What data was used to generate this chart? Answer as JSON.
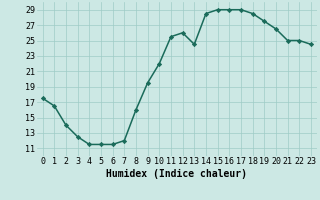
{
  "x": [
    0,
    1,
    2,
    3,
    4,
    5,
    6,
    7,
    8,
    9,
    10,
    11,
    12,
    13,
    14,
    15,
    16,
    17,
    18,
    19,
    20,
    21,
    22,
    23
  ],
  "y": [
    17.5,
    16.5,
    14.0,
    12.5,
    11.5,
    11.5,
    11.5,
    12.0,
    16.0,
    19.5,
    22.0,
    25.5,
    26.0,
    24.5,
    28.5,
    29.0,
    29.0,
    29.0,
    28.5,
    27.5,
    26.5,
    25.0,
    25.0,
    24.5
  ],
  "line_color": "#1a6b5a",
  "marker": "D",
  "marker_size": 2.2,
  "bg_color": "#cce8e4",
  "grid_color": "#9fccc6",
  "xlabel": "Humidex (Indice chaleur)",
  "xlabel_fontsize": 7,
  "xlim": [
    -0.5,
    23.5
  ],
  "ylim": [
    10,
    30
  ],
  "yticks": [
    11,
    13,
    15,
    17,
    19,
    21,
    23,
    25,
    27,
    29
  ],
  "xticks": [
    0,
    1,
    2,
    3,
    4,
    5,
    6,
    7,
    8,
    9,
    10,
    11,
    12,
    13,
    14,
    15,
    16,
    17,
    18,
    19,
    20,
    21,
    22,
    23
  ],
  "tick_fontsize": 6.0,
  "linewidth": 1.1
}
